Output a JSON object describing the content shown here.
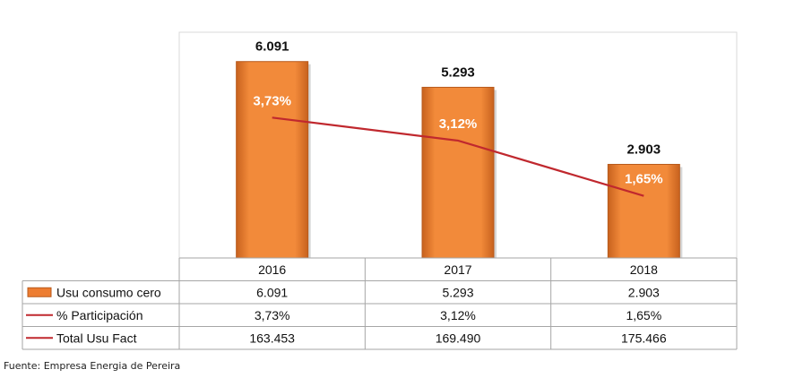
{
  "chart_data": {
    "type": "bar",
    "categories": [
      "2016",
      "2017",
      "2018"
    ],
    "series": [
      {
        "name": "Usu consumo cero",
        "type": "bar",
        "values": [
          6091,
          5293,
          2903
        ],
        "labels": [
          "6.091",
          "5.293",
          "2.903"
        ]
      },
      {
        "name": "% Participación",
        "type": "line",
        "values": [
          3.73,
          3.12,
          1.65
        ],
        "labels": [
          "3,73%",
          "3,12%",
          "1,65%"
        ]
      },
      {
        "name": "Total Usu Fact",
        "type": "line",
        "values": [
          163453,
          169490,
          175466
        ],
        "labels": [
          "163.453",
          "169.490",
          "175.466"
        ]
      }
    ],
    "ylim": [
      0,
      7000
    ],
    "legend": "data-table",
    "colors": {
      "bar": "#ED7D31",
      "bar_edge": "#B85A1C",
      "participacion": "#C0282E",
      "total": "#C0282E",
      "grid": "#A6A6A6"
    }
  },
  "source_note": "Fuente: Empresa Energia de Pereira"
}
